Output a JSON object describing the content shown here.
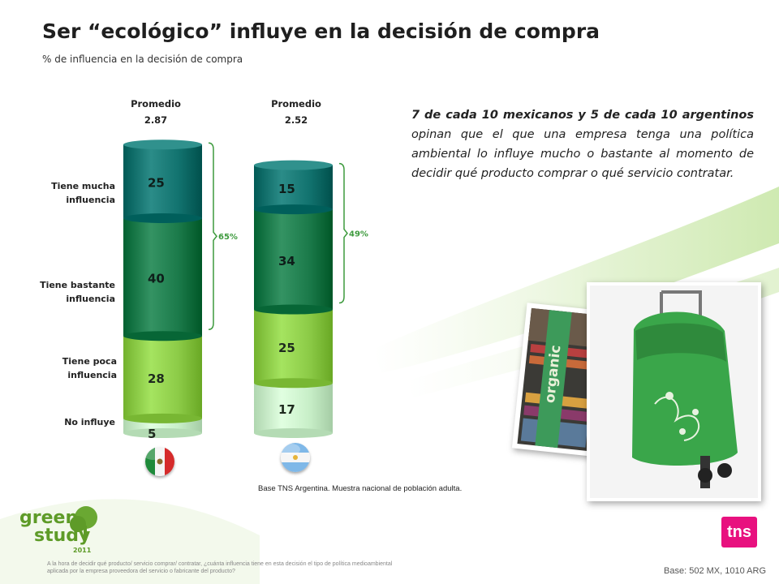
{
  "title": "Ser “ecológico” influye en la decisión de compra",
  "subtitle": "% de influencia en la decisión de compra",
  "colors": {
    "tiene_mucha": "#12736f",
    "tiene_bastante": "#1b7a4a",
    "tiene_poca": "#8ccb47",
    "no_influye": "#c8efc8",
    "bracket": "#3d9a3d",
    "tns": "#e8117f"
  },
  "chart_data": {
    "type": "bar",
    "stacked": true,
    "categories": [
      "México",
      "Argentina"
    ],
    "averages": [
      {
        "label": "Promedio",
        "value": "2.87"
      },
      {
        "label": "Promedio",
        "value": "2.52"
      }
    ],
    "series": [
      {
        "name": "No influye",
        "key": "no_influye",
        "values": [
          5,
          17
        ]
      },
      {
        "name": "Tiene poca influencia",
        "key": "tiene_poca",
        "values": [
          28,
          25
        ]
      },
      {
        "name": "Tiene bastante influencia",
        "key": "tiene_bastante",
        "values": [
          40,
          34
        ]
      },
      {
        "name": "Tiene mucha influencia",
        "key": "tiene_mucha",
        "values": [
          25,
          15
        ]
      }
    ],
    "row_labels": [
      [
        "Tiene mucha",
        "influencia"
      ],
      [
        "Tiene bastante",
        "influencia"
      ],
      [
        "Tiene poca",
        "influencia"
      ],
      [
        "No influye"
      ]
    ],
    "brackets": [
      {
        "label": "65%"
      },
      {
        "label": "49%"
      }
    ]
  },
  "note": {
    "bold": "7 de cada 10 mexicanos y 5 de cada  10 argentinos",
    "rest": " opinan que el que una empresa tenga una política ambiental lo influye mucho o bastante al momento de decidir qué producto comprar o qué servicio contratar."
  },
  "base_note": "Base TNS Argentina. Muestra nacional de población adulta.",
  "footer_question": "A la hora de decidir qué producto/ servicio comprar/ contratar, ¿cuánta influencia tiene en esta decisión el tipo de política medioambiental aplicada por la empresa proveedora del servicio o fabricante del producto?",
  "base_right": "Base: 502 MX, 1010 ARG",
  "logos": {
    "green_line1": "green",
    "green_line2": "study",
    "green_year": "2011",
    "tns": "tns",
    "organic_sign": "organic"
  },
  "flags": [
    {
      "icon": "mexico-flag-icon"
    },
    {
      "icon": "argentina-flag-icon"
    }
  ]
}
